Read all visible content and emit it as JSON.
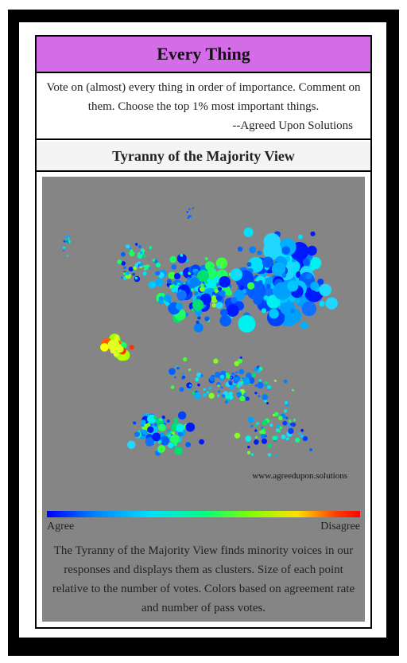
{
  "header": {
    "title": "Every Thing"
  },
  "description": {
    "text": "Vote on (almost) every thing in order of importance. Comment on them. Choose the top 1% most important things.",
    "signature": "--Agreed Upon Solutions"
  },
  "view": {
    "title": "Tyranny of the Majority View"
  },
  "visualization": {
    "watermark": "www.agreedupon.solutions",
    "scale": {
      "left_label": "Agree",
      "right_label": "Disagree"
    },
    "explanation": "The Tyranny of the Majority View finds minority voices in our responses and displays them as clusters. Size of each point relative to the number of votes. Colors based on agreement rate and number of pass votes."
  },
  "colors": {
    "title_bar": "#d46ce8",
    "panel": "#858585",
    "scale_gradient": [
      "#0000ff",
      "#0080ff",
      "#00e0ff",
      "#00ff80",
      "#80ff00",
      "#ffe000",
      "#ff4000",
      "#ff0000"
    ]
  }
}
